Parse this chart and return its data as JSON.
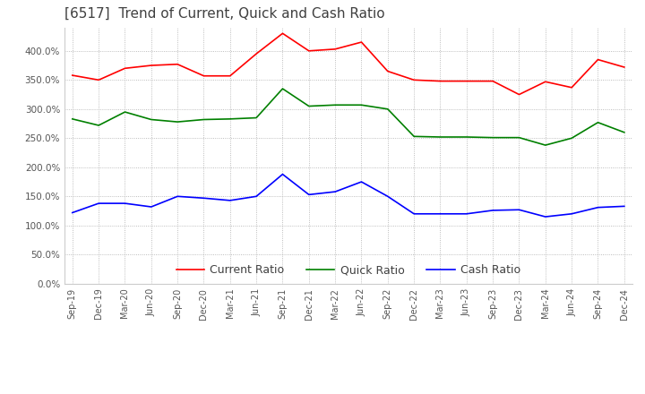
{
  "title": "[6517]  Trend of Current, Quick and Cash Ratio",
  "x_labels": [
    "Sep-19",
    "Dec-19",
    "Mar-20",
    "Jun-20",
    "Sep-20",
    "Dec-20",
    "Mar-21",
    "Jun-21",
    "Sep-21",
    "Dec-21",
    "Mar-22",
    "Jun-22",
    "Sep-22",
    "Dec-22",
    "Mar-23",
    "Jun-23",
    "Sep-23",
    "Dec-23",
    "Mar-24",
    "Jun-24",
    "Sep-24",
    "Dec-24"
  ],
  "current_ratio": [
    358,
    350,
    370,
    375,
    377,
    357,
    357,
    395,
    430,
    400,
    403,
    415,
    365,
    350,
    348,
    348,
    348,
    325,
    347,
    337,
    385,
    372
  ],
  "quick_ratio": [
    283,
    272,
    295,
    282,
    278,
    282,
    283,
    285,
    335,
    305,
    307,
    307,
    300,
    253,
    252,
    252,
    251,
    251,
    238,
    250,
    277,
    260
  ],
  "cash_ratio": [
    122,
    138,
    138,
    132,
    150,
    147,
    143,
    150,
    188,
    153,
    158,
    175,
    150,
    120,
    120,
    120,
    126,
    127,
    115,
    120,
    131,
    133
  ],
  "current_color": "#ff0000",
  "quick_color": "#008000",
  "cash_color": "#0000ff",
  "ylim": [
    0,
    440
  ],
  "yticks": [
    0,
    50,
    100,
    150,
    200,
    250,
    300,
    350,
    400
  ],
  "background_color": "#ffffff",
  "title_color": "#404040",
  "title_fontsize": 11
}
